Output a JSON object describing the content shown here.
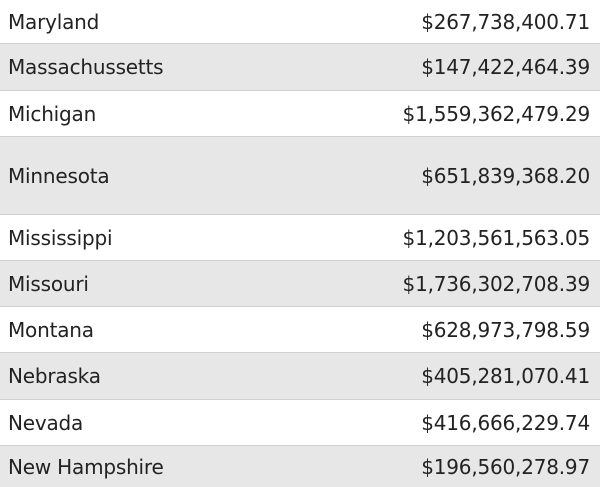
{
  "rows": [
    {
      "state": "Maryland",
      "amount": "$267,738,400.71"
    },
    {
      "state": "Massachussetts",
      "amount": "$147,422,464.39"
    },
    {
      "state": "Michigan",
      "amount": "$1,559,362,479.29"
    },
    {
      "state": "Minnesota",
      "amount": "$651,839,368.20"
    },
    {
      "state": "Mississippi",
      "amount": "$1,203,561,563.05"
    },
    {
      "state": "Missouri",
      "amount": "$1,736,302,708.39"
    },
    {
      "state": "Montana",
      "amount": "$628,973,798.59"
    },
    {
      "state": "Nebraska",
      "amount": "$405,281,070.41"
    },
    {
      "state": "Nevada",
      "amount": "$416,666,229.74"
    },
    {
      "state": "New Hampshire",
      "amount": "$196,560,278.97"
    }
  ],
  "colors": {
    "row_alt_background": "#e7e7e7",
    "row_background": "#ffffff",
    "divider": "#d0d0d0",
    "text": "#222222"
  }
}
